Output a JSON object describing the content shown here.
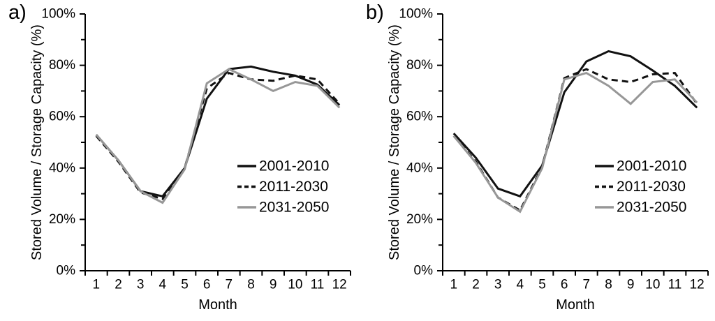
{
  "figure_colors": {
    "black": "#111111",
    "gray": "#979797",
    "axis": "#000000"
  },
  "chart_data": [
    {
      "type": "line",
      "panel_label": "a)",
      "xlabel": "Month",
      "ylabel": "Stored Volume / Storage Capacity (%)",
      "x": [
        1,
        2,
        3,
        4,
        5,
        6,
        7,
        8,
        9,
        10,
        11,
        12
      ],
      "ylim": [
        0,
        100
      ],
      "ytick_step_minor": 10,
      "ytick_labels": [
        "0%",
        "20%",
        "40%",
        "60%",
        "80%",
        "100%"
      ],
      "grid": false,
      "legend_position": "right-center",
      "series": [
        {
          "name": "2001-2010",
          "style": "solid",
          "color": "#111111",
          "values": [
            53,
            43,
            31,
            29,
            40,
            67,
            78.5,
            79.5,
            77.5,
            76,
            72.5,
            64.5
          ]
        },
        {
          "name": "2011-2030",
          "style": "dashed",
          "color": "#111111",
          "values": [
            52.5,
            42.5,
            30.5,
            28,
            40,
            71,
            77,
            74.5,
            74,
            76,
            74.5,
            65
          ]
        },
        {
          "name": "2031-2050",
          "style": "solid",
          "color": "#979797",
          "values": [
            53,
            43,
            31,
            26.5,
            39.5,
            73,
            78.5,
            74.5,
            70,
            73.5,
            72,
            63.5
          ]
        }
      ]
    },
    {
      "type": "line",
      "panel_label": "b)",
      "xlabel": "Month",
      "ylabel": "Stored Volume / Storage Capacity (%)",
      "x": [
        1,
        2,
        3,
        4,
        5,
        6,
        7,
        8,
        9,
        10,
        11,
        12
      ],
      "ylim": [
        0,
        100
      ],
      "ytick_step_minor": 10,
      "ytick_labels": [
        "0%",
        "20%",
        "40%",
        "60%",
        "80%",
        "100%"
      ],
      "grid": false,
      "legend_position": "right-center",
      "series": [
        {
          "name": "2001-2010",
          "style": "solid",
          "color": "#111111",
          "values": [
            53.5,
            44,
            32,
            29,
            41,
            69.5,
            81.5,
            85.5,
            83.5,
            78,
            72,
            63.5
          ]
        },
        {
          "name": "2011-2030",
          "style": "dashed",
          "color": "#111111",
          "values": [
            52.5,
            42.5,
            28.5,
            23.5,
            40.5,
            75,
            78.5,
            74.5,
            73.5,
            76.5,
            77,
            65
          ]
        },
        {
          "name": "2031-2050",
          "style": "solid",
          "color": "#979797",
          "values": [
            52.5,
            42,
            28.5,
            23,
            40,
            74.5,
            77,
            72,
            65,
            73.5,
            74.5,
            65.5
          ]
        }
      ]
    }
  ]
}
